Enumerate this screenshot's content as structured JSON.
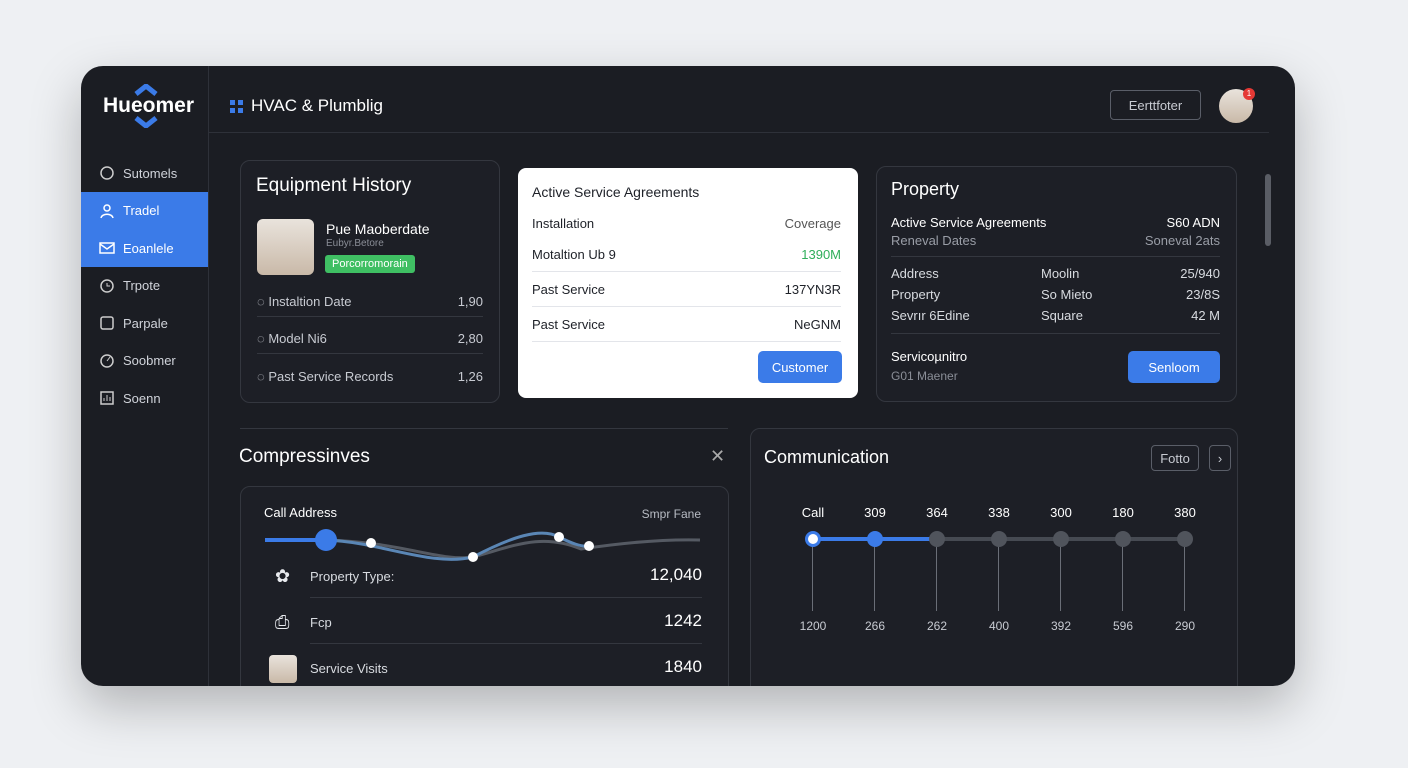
{
  "app": {
    "logo": "Hueomer",
    "title": "HVAC & Plumblig",
    "header_button": "Eerttfoter",
    "notification_count": "1"
  },
  "sidebar": {
    "items": [
      {
        "label": "Sutomels",
        "icon": "cloud-icon",
        "active": false
      },
      {
        "label": "Tradel",
        "icon": "user-icon",
        "active": true
      },
      {
        "label": "Eoanlele",
        "icon": "mail-icon",
        "active": true
      },
      {
        "label": "Trpote",
        "icon": "clock-icon",
        "active": false
      },
      {
        "label": "Parpale",
        "icon": "inbox-icon",
        "active": false
      },
      {
        "label": "Soobmer",
        "icon": "gauge-icon",
        "active": false
      },
      {
        "label": "Soenn",
        "icon": "chart-icon",
        "active": false
      }
    ]
  },
  "equipment": {
    "title": "Equipment History",
    "name": "Pue Maoberdate",
    "subtitle": "Eubyr.Betore",
    "badge": "Porcorromorain",
    "rows": [
      {
        "label": "Instaltion Date",
        "value": "1,90"
      },
      {
        "label": "Model Ni6",
        "value": "2,80"
      },
      {
        "label": "Past Service Records",
        "value": "1,26"
      }
    ]
  },
  "agreements": {
    "title": "Active Service Agreements",
    "col_left": "Installation",
    "col_right": "Coverage",
    "rows": [
      {
        "label": "Motaltion Ub 9",
        "value": "1390M",
        "color": "#2fae5a"
      },
      {
        "label": "Past Service",
        "value": "137YN3R"
      },
      {
        "label": "Past Service",
        "value": "NeGNM"
      }
    ],
    "button": "Customer"
  },
  "property": {
    "title": "Property",
    "top_left": "Active Service Agreements",
    "top_right": "S60 ADN",
    "sub_left": "Reneval Dates",
    "sub_right": "Soneval 2ats",
    "rows": [
      {
        "a": "Address",
        "b": "Moolin",
        "c": "25/940"
      },
      {
        "a": "Property",
        "b": "So Mieto",
        "c": "23/8S"
      },
      {
        "a": "Sevrır 6Edine",
        "b": "Square",
        "c": "42 M"
      }
    ],
    "footer_title": "Servicoµnitro",
    "footer_sub": "G01 Maener",
    "button": "Senloom"
  },
  "compress": {
    "title": "Compressinves",
    "chart_left": "Call Address",
    "chart_right": "Smpr Fane",
    "rows": [
      {
        "label": "Property Type:",
        "value": "12,040",
        "icon": "gear-icon"
      },
      {
        "label": "Fcp",
        "value": "1242",
        "icon": "clipboard-icon"
      },
      {
        "label": "Service Visits",
        "value": "1840",
        "icon": "avatar"
      }
    ]
  },
  "communication": {
    "title": "Communication",
    "button": "Fotto",
    "top_labels": [
      "Call",
      "309",
      "364",
      "338",
      "300",
      "180",
      "380"
    ],
    "bottom_labels": [
      "1200",
      "266",
      "262",
      "400",
      "392",
      "596",
      "290"
    ],
    "active_steps": 2
  },
  "colors": {
    "accent": "#3b7be8",
    "green": "#3fbf63",
    "bg": "#1b1d23"
  }
}
